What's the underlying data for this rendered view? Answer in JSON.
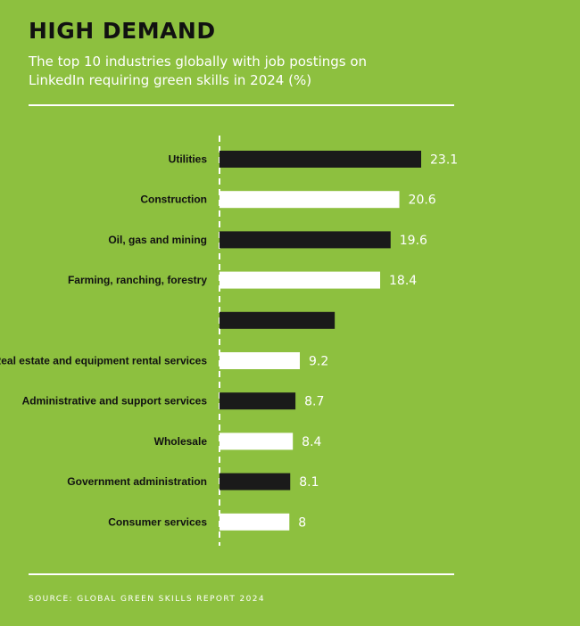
{
  "header": {
    "title": "HIGH DEMAND",
    "subtitle": "The top 10 industries globally with job postings on LinkedIn requiring green skills in 2024 (%)"
  },
  "footer": {
    "source": "SOURCE: GLOBAL GREEN SKILLS REPORT 2024"
  },
  "colors": {
    "background": "#8dc03f",
    "bar_dark": "#1a1a1a",
    "bar_light": "#ffffff",
    "text_dark": "#111111",
    "text_light": "#ffffff"
  },
  "chart_data": {
    "type": "bar",
    "orientation": "horizontal",
    "categories": [
      "Utilities",
      "Construction",
      "Oil, gas and mining",
      "Farming, ranching, forestry",
      "",
      "Real estate and equipment rental services",
      "Administrative and support services",
      "Wholesale",
      "Government administration",
      "Consumer services"
    ],
    "values": [
      23.1,
      20.6,
      19.6,
      18.4,
      13.2,
      9.2,
      8.7,
      8.4,
      8.1,
      8
    ],
    "value_labels": [
      "23.1",
      "20.6",
      "19.6",
      "18.4",
      "",
      "9.2",
      "8.7",
      "8.4",
      "8.1",
      "8"
    ],
    "bar_colors": [
      "#1a1a1a",
      "#ffffff",
      "#1a1a1a",
      "#ffffff",
      "#1a1a1a",
      "#ffffff",
      "#1a1a1a",
      "#ffffff",
      "#1a1a1a",
      "#ffffff"
    ],
    "xlim": [
      0,
      23.1
    ],
    "grid": false
  }
}
